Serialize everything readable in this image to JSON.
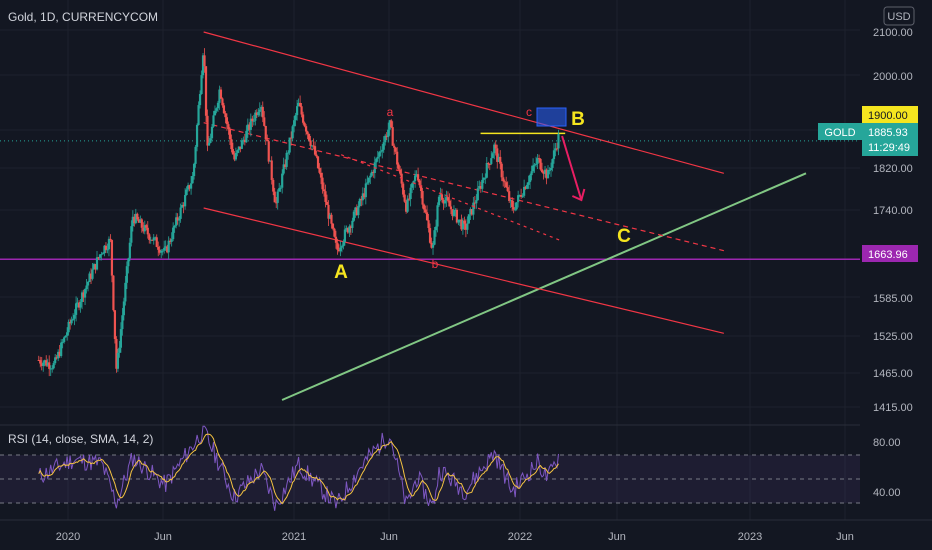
{
  "header": {
    "title": "Gold, 1D, CURRENCYCOM",
    "currency": "USD"
  },
  "price_axis": {
    "ticks": [
      "2100.00",
      "2000.00",
      "1820.00",
      "1740.00",
      "1585.00",
      "1525.00",
      "1465.00",
      "1415.00"
    ],
    "labels": {
      "resistance": {
        "text": "1900.00",
        "value": 1900,
        "color": "#f5e51f"
      },
      "symbol": {
        "text": "GOLD",
        "color": "#26a69a"
      },
      "last_price": {
        "text": "1885.93",
        "value": 1885.93
      },
      "countdown": {
        "text": "11:29:49"
      },
      "support": {
        "text": "1663.96",
        "value": 1663.96,
        "color": "#9c27b0"
      }
    }
  },
  "time_axis": {
    "ticks": [
      "2020",
      "Jun",
      "2021",
      "Jun",
      "2022",
      "Jun",
      "2023",
      "Jun"
    ]
  },
  "annotations": {
    "A": "A",
    "B": "B",
    "C": "C",
    "a": "a",
    "b": "b",
    "c": "c"
  },
  "rsi": {
    "title": "RSI (14, close, SMA, 14, 2)",
    "ticks": [
      "80.00",
      "40.00"
    ],
    "levels": [
      70,
      50,
      30
    ],
    "range": [
      20,
      95
    ]
  },
  "chart_data": {
    "type": "candlestick",
    "title": "Gold, 1D, CURRENCYCOM",
    "ylim": [
      1400,
      2130
    ],
    "x_range": [
      "2019-11-15",
      "2023-06-15"
    ],
    "colors": {
      "up": "#26a69a",
      "down": "#ef5350",
      "channel": "#f23645",
      "trend": "#81c784",
      "rsi": "#7e57c2",
      "rsi_ma": "#f5c342"
    },
    "price_path": [
      [
        "2019-11-15",
        1475
      ],
      [
        "2019-12-10",
        1465
      ],
      [
        "2020-01-08",
        1555
      ],
      [
        "2020-02-24",
        1680
      ],
      [
        "2020-03-09",
        1700
      ],
      [
        "2020-03-19",
        1455
      ],
      [
        "2020-04-14",
        1745
      ],
      [
        "2020-06-05",
        1675
      ],
      [
        "2020-07-20",
        1820
      ],
      [
        "2020-08-06",
        2070
      ],
      [
        "2020-08-12",
        1865
      ],
      [
        "2020-09-01",
        1985
      ],
      [
        "2020-09-24",
        1850
      ],
      [
        "2020-11-06",
        1960
      ],
      [
        "2020-11-30",
        1765
      ],
      [
        "2021-01-05",
        1955
      ],
      [
        "2021-02-01",
        1860
      ],
      [
        "2021-03-08",
        1680
      ],
      [
        "2021-04-15",
        1770
      ],
      [
        "2021-06-01",
        1915
      ],
      [
        "2021-06-28",
        1760
      ],
      [
        "2021-07-15",
        1830
      ],
      [
        "2021-08-09",
        1680
      ],
      [
        "2021-08-20",
        1790
      ],
      [
        "2021-09-30",
        1720
      ],
      [
        "2021-11-16",
        1875
      ],
      [
        "2021-12-15",
        1755
      ],
      [
        "2022-01-25",
        1850
      ],
      [
        "2022-02-10",
        1820
      ],
      [
        "2022-03-01",
        1900
      ]
    ],
    "channel_upper": [
      [
        "2020-08-06",
        2090
      ],
      [
        "2022-11-20",
        1825
      ]
    ],
    "channel_lower": [
      [
        "2020-08-06",
        1760
      ],
      [
        "2022-11-20",
        1525
      ]
    ],
    "channel_mid": [
      [
        "2020-08-06",
        1920
      ],
      [
        "2022-11-20",
        1680
      ]
    ],
    "trendline": [
      [
        "2020-12-10",
        1400
      ],
      [
        "2023-04-01",
        1825
      ]
    ],
    "resistance_segment": [
      [
        "2021-10-25",
        1900
      ],
      [
        "2022-03-10",
        1900
      ]
    ],
    "projection": [
      [
        "2022-03-05",
        1895
      ],
      [
        "2022-04-05",
        1775
      ]
    ],
    "rsi_path": [
      [
        "2019-11-15",
        52
      ],
      [
        "2020-01-08",
        66
      ],
      [
        "2020-02-24",
        63
      ],
      [
        "2020-03-19",
        30
      ],
      [
        "2020-04-14",
        68
      ],
      [
        "2020-06-05",
        45
      ],
      [
        "2020-08-06",
        91
      ],
      [
        "2020-09-24",
        35
      ],
      [
        "2020-11-06",
        58
      ],
      [
        "2020-11-30",
        28
      ],
      [
        "2021-01-05",
        62
      ],
      [
        "2021-03-08",
        28
      ],
      [
        "2021-04-15",
        60
      ],
      [
        "2021-06-01",
        88
      ],
      [
        "2021-06-28",
        27
      ],
      [
        "2021-07-15",
        52
      ],
      [
        "2021-08-09",
        26
      ],
      [
        "2021-08-20",
        58
      ],
      [
        "2021-09-30",
        40
      ],
      [
        "2021-11-16",
        72
      ],
      [
        "2021-12-15",
        40
      ],
      [
        "2022-01-25",
        64
      ],
      [
        "2022-02-10",
        50
      ],
      [
        "2022-03-01",
        71
      ]
    ]
  }
}
